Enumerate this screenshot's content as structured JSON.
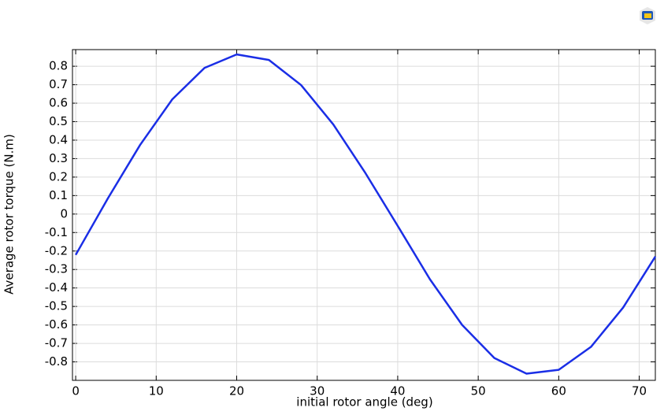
{
  "chart_data": {
    "type": "line",
    "x_label": "initial rotor angle (deg)",
    "y_label": "Average rotor torque (N.m)",
    "x": [
      0,
      4,
      8,
      12,
      16,
      20,
      24,
      28,
      32,
      36,
      40,
      44,
      48,
      52,
      56,
      60,
      64,
      68,
      72
    ],
    "series": [
      {
        "color": "#1a2ee6",
        "values": [
          -0.221,
          0.085,
          0.374,
          0.621,
          0.791,
          0.864,
          0.834,
          0.698,
          0.485,
          0.221,
          -0.064,
          -0.353,
          -0.6,
          -0.779,
          -0.864,
          -0.843,
          -0.719,
          -0.506,
          -0.23
        ]
      }
    ],
    "xlim": [
      -0.4,
      72
    ],
    "ylim": [
      -0.9,
      0.89
    ],
    "xticks": [
      0,
      10,
      20,
      30,
      40,
      50,
      60,
      70
    ],
    "yticks": [
      -0.8,
      -0.7,
      -0.6,
      -0.5,
      -0.4,
      -0.3,
      -0.2,
      -0.1,
      0,
      0.1,
      0.2,
      0.3,
      0.4,
      0.5,
      0.6,
      0.7,
      0.8
    ],
    "grid": true
  }
}
